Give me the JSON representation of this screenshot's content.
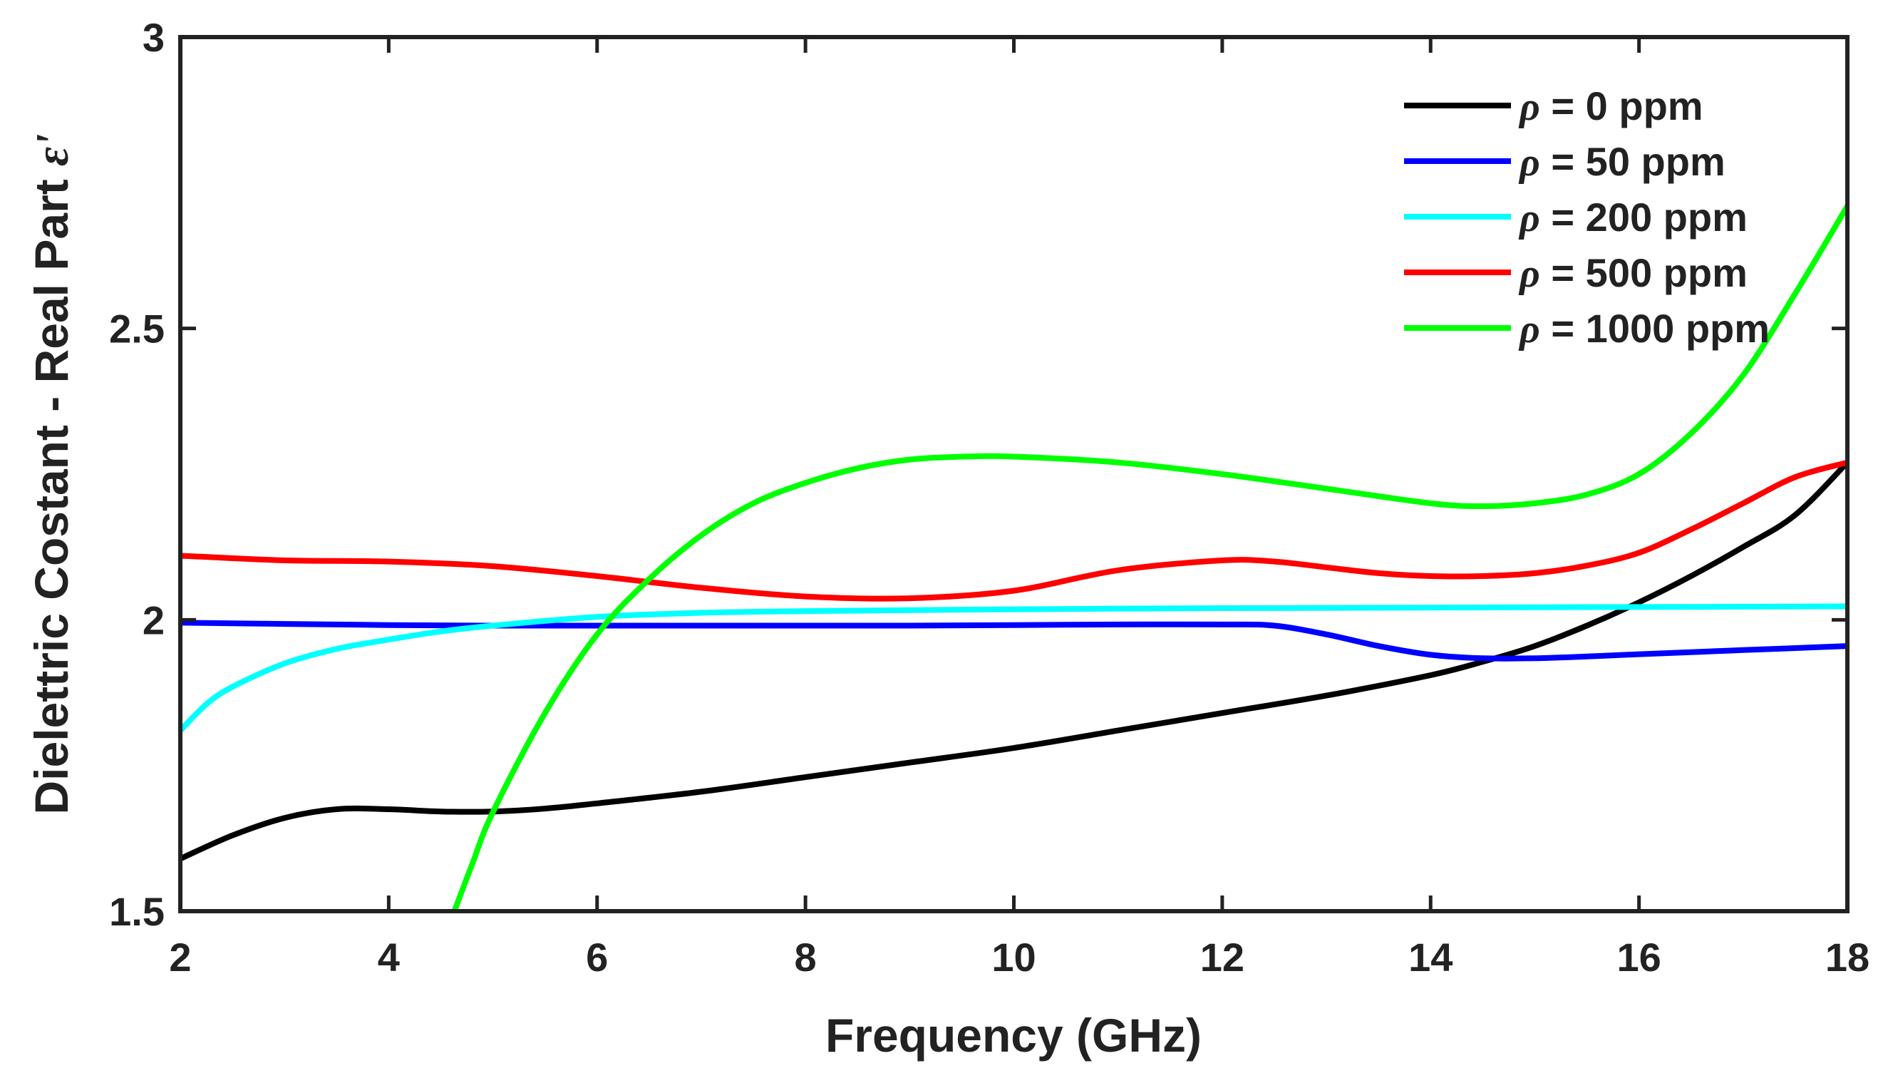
{
  "chart_data": {
    "type": "line",
    "title": "",
    "xlabel": "Frequency (GHz)",
    "ylabel_main": "Dielettric Costant - Real Part ",
    "ylabel_symbol": "ε'",
    "xlim": [
      2,
      18
    ],
    "ylim": [
      1.5,
      3
    ],
    "xticks": [
      2,
      4,
      6,
      8,
      10,
      12,
      14,
      16,
      18
    ],
    "xtick_labels": [
      "2",
      "4",
      "6",
      "8",
      "10",
      "12",
      "14",
      "16",
      "18"
    ],
    "yticks": [
      1.5,
      2,
      2.5,
      3
    ],
    "ytick_labels": [
      "1.5",
      "2",
      "2.5",
      "3"
    ],
    "grid": false,
    "legend_position": "top-right",
    "series": [
      {
        "name": "0 ppm",
        "color": "#000000",
        "x": [
          2,
          2.5,
          3,
          3.5,
          4,
          4.5,
          5,
          5.5,
          6,
          7,
          8,
          9,
          10,
          11,
          12,
          13,
          14,
          14.5,
          15,
          15.5,
          16,
          16.5,
          17,
          17.5,
          18
        ],
        "y": [
          1.59,
          1.63,
          1.66,
          1.675,
          1.675,
          1.671,
          1.671,
          1.676,
          1.685,
          1.705,
          1.73,
          1.755,
          1.78,
          1.81,
          1.84,
          1.87,
          1.905,
          1.928,
          1.955,
          1.99,
          2.03,
          2.075,
          2.125,
          2.18,
          2.27
        ]
      },
      {
        "name": "50 ppm",
        "color": "#0000FF",
        "x": [
          2,
          3,
          4,
          5,
          6,
          7,
          8,
          9,
          10,
          11,
          12,
          12.5,
          13,
          13.5,
          14,
          14.5,
          15,
          15.5,
          16,
          17,
          18
        ],
        "y": [
          1.995,
          1.993,
          1.991,
          1.99,
          1.99,
          1.99,
          1.99,
          1.99,
          1.991,
          1.992,
          1.992,
          1.99,
          1.975,
          1.955,
          1.94,
          1.934,
          1.934,
          1.937,
          1.941,
          1.948,
          1.955
        ]
      },
      {
        "name": "200 ppm",
        "color": "#00FFFF",
        "x": [
          2,
          2.25,
          2.5,
          3,
          3.5,
          4,
          4.5,
          5,
          6,
          7,
          8,
          10,
          12,
          14,
          16,
          18
        ],
        "y": [
          1.81,
          1.855,
          1.885,
          1.925,
          1.95,
          1.966,
          1.98,
          1.99,
          2.005,
          2.012,
          2.015,
          2.018,
          2.02,
          2.021,
          2.022,
          2.023
        ]
      },
      {
        "name": "500 ppm",
        "color": "#FF0000",
        "x": [
          2,
          3,
          4,
          5,
          6,
          7,
          8,
          9,
          10,
          11,
          12,
          12.5,
          13,
          13.5,
          14,
          14.5,
          15,
          15.5,
          16,
          16.5,
          17,
          17.5,
          18
        ],
        "y": [
          2.11,
          2.102,
          2.1,
          2.092,
          2.075,
          2.055,
          2.04,
          2.037,
          2.05,
          2.085,
          2.102,
          2.1,
          2.09,
          2.08,
          2.075,
          2.075,
          2.08,
          2.093,
          2.115,
          2.155,
          2.2,
          2.245,
          2.27
        ]
      },
      {
        "name": "1000 ppm",
        "color": "#00FF00",
        "x": [
          4.63,
          4.8,
          5,
          5.5,
          6,
          6.5,
          7,
          7.5,
          8,
          8.5,
          9,
          9.5,
          10,
          11,
          12,
          13,
          14,
          14.5,
          15,
          15.5,
          16,
          16.5,
          17,
          17.5,
          18
        ],
        "y": [
          1.5,
          1.58,
          1.67,
          1.84,
          1.975,
          2.07,
          2.145,
          2.2,
          2.235,
          2.26,
          2.275,
          2.28,
          2.28,
          2.27,
          2.25,
          2.225,
          2.2,
          2.195,
          2.2,
          2.215,
          2.25,
          2.32,
          2.42,
          2.56,
          2.71
        ]
      }
    ],
    "legend": {
      "symbol": "ρ",
      "entries": [
        "= 0 ppm",
        "= 50 ppm",
        "= 200 ppm",
        "= 500 ppm",
        "= 1000 ppm"
      ]
    }
  }
}
